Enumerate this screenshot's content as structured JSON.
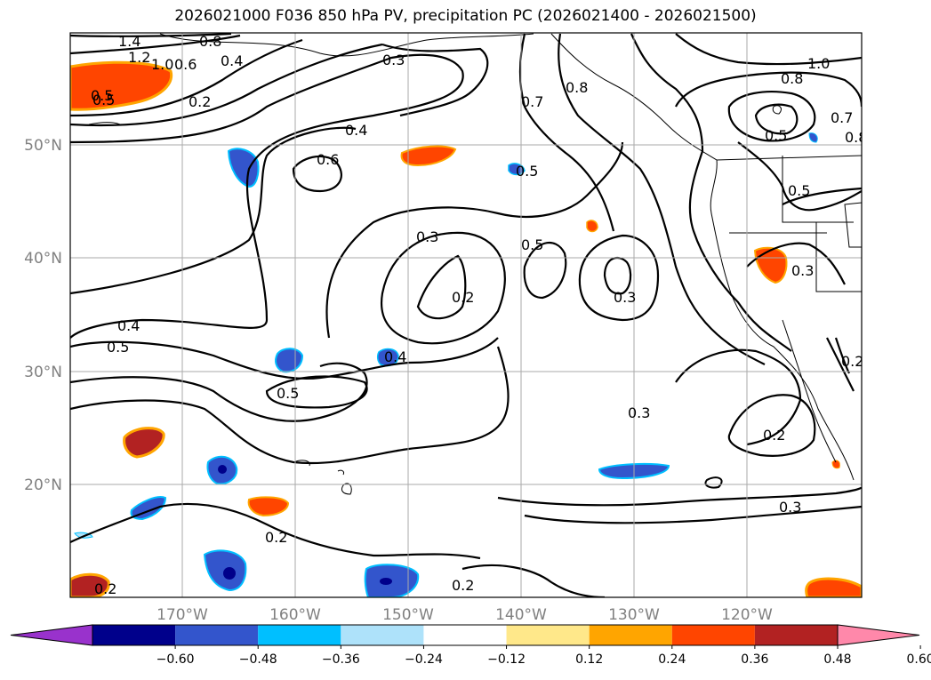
{
  "title": "2026021000 F036 850 hPa PV, precipitation PC (2026021400 - 2026021500)",
  "lat_labels": [
    "50°N",
    "40°N",
    "30°N",
    "20°N"
  ],
  "lon_labels": [
    "170°W",
    "160°W",
    "150°W",
    "140°W",
    "130°W",
    "120°W"
  ],
  "contour_labels": [
    "1.4",
    "1.2",
    "1.0",
    "0.8",
    "0.6",
    "0.4",
    "0.5",
    "0.2",
    "0.3",
    "0.4",
    "0.6",
    "0.5",
    "0.7",
    "0.8",
    "1.0",
    "0.8",
    "0.7",
    "0.8",
    "0.5",
    "0.5",
    "0.3",
    "0.5",
    "0.2",
    "0.3",
    "0.3",
    "0.4",
    "0.5",
    "0.4",
    "0.5",
    "0.3",
    "0.2",
    "0.2",
    "0.3",
    "0.2",
    "0.2",
    "0.2",
    "0.5"
  ],
  "colorbar": {
    "ticks": [
      "−0.60",
      "−0.48",
      "−0.36",
      "−0.24",
      "−0.12",
      "0.12",
      "0.24",
      "0.36",
      "0.48",
      "0.60"
    ],
    "colors": [
      "#9932cc",
      "#00008b",
      "#3355cc",
      "#00bfff",
      "#aee2fa",
      "#ffffff",
      "#ffe88a",
      "#ffa500",
      "#ff4500",
      "#b22222",
      "#ff88aa"
    ]
  }
}
